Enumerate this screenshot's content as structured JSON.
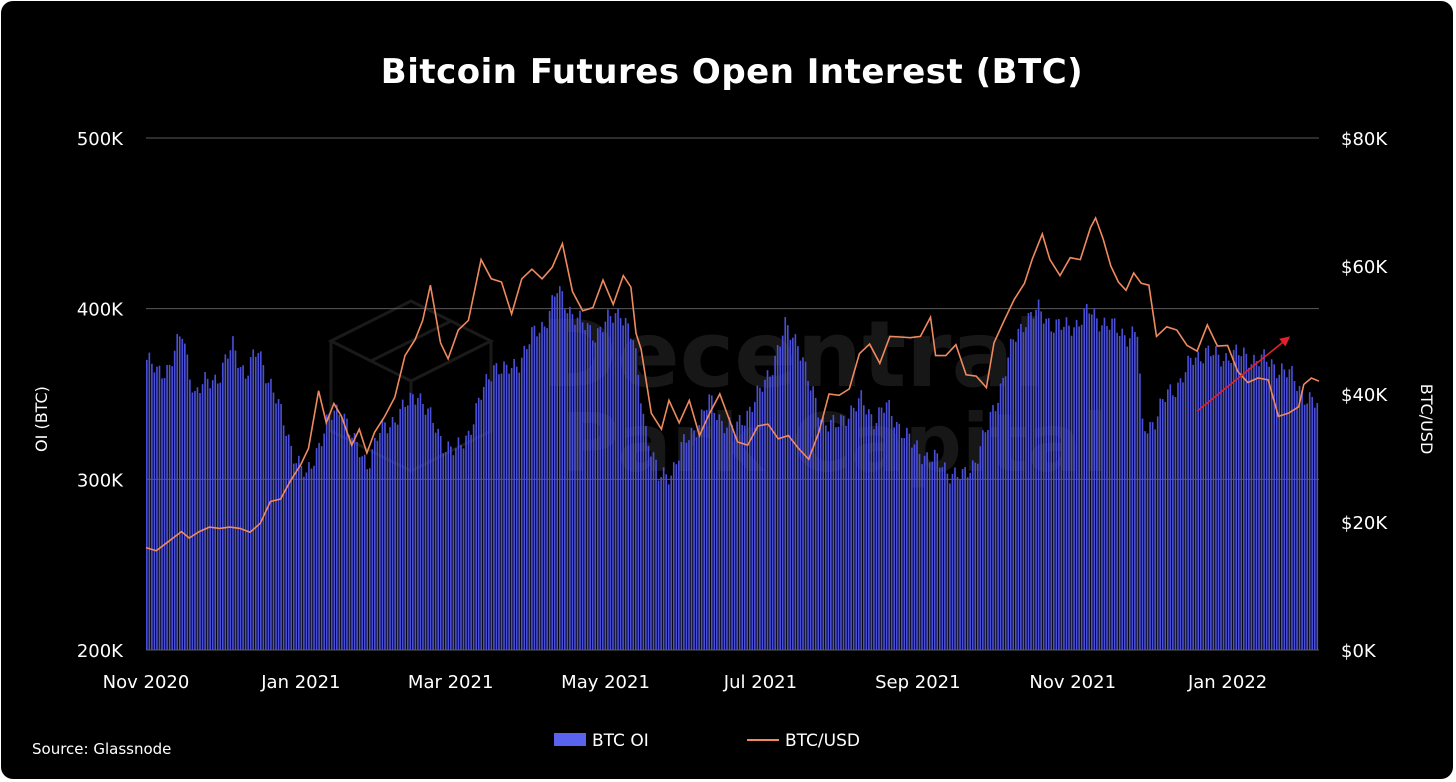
{
  "chart_data": {
    "type": "bar+line",
    "title": "Bitcoin Futures Open Interest (BTC)",
    "y_left_label": "OI (BTC)",
    "y_right_label": "BTC/USD",
    "y_left_ticks": [
      "200K",
      "300K",
      "400K",
      "500K"
    ],
    "y_right_ticks": [
      "$0K",
      "$20K",
      "$40K",
      "$60K",
      "$80K"
    ],
    "x_ticks": [
      "Nov 2020",
      "Jan 2021",
      "Mar 2021",
      "May 2021",
      "Jul 2021",
      "Sep 2021",
      "Nov 2021",
      "Jan 2022"
    ],
    "y_left_range": [
      200000,
      500000
    ],
    "y_right_range": [
      0,
      80000
    ],
    "grid": "horizontal",
    "legend_position": "bottom-center",
    "source": "Source: Glassnode",
    "watermark": [
      "Decentral",
      "Park Capital"
    ],
    "colors": {
      "bars": "#4a4fd8",
      "bars_legend": "#5a63f0",
      "line": "#f08a5e",
      "arrow": "#e0202a",
      "grid": "#5a5a5a",
      "background": "#000000"
    },
    "series": [
      {
        "name": "BTC OI",
        "kind": "bar",
        "x_start": "2020-11-01",
        "x_step_days": 1,
        "anchors": [
          [
            "2020-11-01",
            370000
          ],
          [
            "2020-11-05",
            362000
          ],
          [
            "2020-11-10",
            367000
          ],
          [
            "2020-11-15",
            385000
          ],
          [
            "2020-11-20",
            350000
          ],
          [
            "2020-11-25",
            357000
          ],
          [
            "2020-11-30",
            362000
          ],
          [
            "2020-12-05",
            378000
          ],
          [
            "2020-12-10",
            362000
          ],
          [
            "2020-12-15",
            375000
          ],
          [
            "2020-12-20",
            356000
          ],
          [
            "2020-12-25",
            333000
          ],
          [
            "2020-12-30",
            312000
          ],
          [
            "2021-01-03",
            300000
          ],
          [
            "2021-01-07",
            318000
          ],
          [
            "2021-01-12",
            335000
          ],
          [
            "2021-01-17",
            343000
          ],
          [
            "2021-01-22",
            320000
          ],
          [
            "2021-01-27",
            310000
          ],
          [
            "2021-02-01",
            327000
          ],
          [
            "2021-02-06",
            335000
          ],
          [
            "2021-02-11",
            342000
          ],
          [
            "2021-02-16",
            352000
          ],
          [
            "2021-02-21",
            335000
          ],
          [
            "2021-02-26",
            322000
          ],
          [
            "2021-03-03",
            315000
          ],
          [
            "2021-03-08",
            328000
          ],
          [
            "2021-03-13",
            348000
          ],
          [
            "2021-03-18",
            368000
          ],
          [
            "2021-03-23",
            362000
          ],
          [
            "2021-03-28",
            370000
          ],
          [
            "2021-04-02",
            383000
          ],
          [
            "2021-04-07",
            392000
          ],
          [
            "2021-04-12",
            410000
          ],
          [
            "2021-04-17",
            400000
          ],
          [
            "2021-04-22",
            390000
          ],
          [
            "2021-04-27",
            386000
          ],
          [
            "2021-05-02",
            392000
          ],
          [
            "2021-05-07",
            400000
          ],
          [
            "2021-05-12",
            380000
          ],
          [
            "2021-05-17",
            330000
          ],
          [
            "2021-05-22",
            300000
          ],
          [
            "2021-05-27",
            305000
          ],
          [
            "2021-06-01",
            320000
          ],
          [
            "2021-06-06",
            332000
          ],
          [
            "2021-06-11",
            345000
          ],
          [
            "2021-06-16",
            335000
          ],
          [
            "2021-06-21",
            328000
          ],
          [
            "2021-06-26",
            340000
          ],
          [
            "2021-07-01",
            350000
          ],
          [
            "2021-07-06",
            368000
          ],
          [
            "2021-07-11",
            388000
          ],
          [
            "2021-07-16",
            382000
          ],
          [
            "2021-07-21",
            352000
          ],
          [
            "2021-07-26",
            335000
          ],
          [
            "2021-07-31",
            330000
          ],
          [
            "2021-08-05",
            340000
          ],
          [
            "2021-08-10",
            345000
          ],
          [
            "2021-08-15",
            336000
          ],
          [
            "2021-08-20",
            342000
          ],
          [
            "2021-08-25",
            332000
          ],
          [
            "2021-08-30",
            320000
          ],
          [
            "2021-09-04",
            315000
          ],
          [
            "2021-09-09",
            310000
          ],
          [
            "2021-09-14",
            305000
          ],
          [
            "2021-09-19",
            300000
          ],
          [
            "2021-09-24",
            312000
          ],
          [
            "2021-09-29",
            330000
          ],
          [
            "2021-10-04",
            355000
          ],
          [
            "2021-10-09",
            380000
          ],
          [
            "2021-10-14",
            395000
          ],
          [
            "2021-10-19",
            398000
          ],
          [
            "2021-10-24",
            392000
          ],
          [
            "2021-10-29",
            388000
          ],
          [
            "2021-11-03",
            392000
          ],
          [
            "2021-11-08",
            398000
          ],
          [
            "2021-11-13",
            393000
          ],
          [
            "2021-11-18",
            388000
          ],
          [
            "2021-11-23",
            385000
          ],
          [
            "2021-11-27",
            385000
          ],
          [
            "2021-11-29",
            330000
          ],
          [
            "2021-12-04",
            335000
          ],
          [
            "2021-12-09",
            350000
          ],
          [
            "2021-12-14",
            358000
          ],
          [
            "2021-12-19",
            370000
          ],
          [
            "2021-12-24",
            376000
          ],
          [
            "2021-12-29",
            370000
          ],
          [
            "2022-01-03",
            374000
          ],
          [
            "2022-01-08",
            372000
          ],
          [
            "2022-01-13",
            371000
          ],
          [
            "2022-01-18",
            368000
          ],
          [
            "2022-01-23",
            365000
          ],
          [
            "2022-01-28",
            358000
          ],
          [
            "2022-02-02",
            348000
          ],
          [
            "2022-02-06",
            342000
          ]
        ]
      },
      {
        "name": "BTC/USD",
        "kind": "line",
        "axis": "right",
        "points": [
          [
            "2020-11-01",
            16000
          ],
          [
            "2020-11-05",
            15500
          ],
          [
            "2020-11-10",
            17000
          ],
          [
            "2020-11-15",
            18500
          ],
          [
            "2020-11-18",
            17500
          ],
          [
            "2020-11-22",
            18500
          ],
          [
            "2020-11-26",
            19200
          ],
          [
            "2020-11-30",
            19000
          ],
          [
            "2020-12-04",
            19200
          ],
          [
            "2020-12-08",
            19000
          ],
          [
            "2020-12-12",
            18400
          ],
          [
            "2020-12-16",
            19800
          ],
          [
            "2020-12-20",
            23200
          ],
          [
            "2020-12-24",
            23600
          ],
          [
            "2020-12-28",
            26500
          ],
          [
            "2021-01-01",
            29000
          ],
          [
            "2021-01-04",
            31500
          ],
          [
            "2021-01-08",
            40500
          ],
          [
            "2021-01-11",
            35500
          ],
          [
            "2021-01-14",
            38500
          ],
          [
            "2021-01-17",
            36500
          ],
          [
            "2021-01-21",
            32000
          ],
          [
            "2021-01-24",
            34500
          ],
          [
            "2021-01-27",
            30800
          ],
          [
            "2021-01-30",
            34000
          ],
          [
            "2021-02-03",
            36500
          ],
          [
            "2021-02-07",
            39500
          ],
          [
            "2021-02-11",
            46000
          ],
          [
            "2021-02-15",
            48500
          ],
          [
            "2021-02-18",
            51500
          ],
          [
            "2021-02-21",
            57000
          ],
          [
            "2021-02-25",
            48000
          ],
          [
            "2021-02-28",
            45500
          ],
          [
            "2021-03-04",
            50000
          ],
          [
            "2021-03-08",
            51500
          ],
          [
            "2021-03-13",
            61000
          ],
          [
            "2021-03-17",
            58000
          ],
          [
            "2021-03-21",
            57500
          ],
          [
            "2021-03-25",
            52500
          ],
          [
            "2021-03-29",
            58000
          ],
          [
            "2021-04-02",
            59500
          ],
          [
            "2021-04-06",
            58000
          ],
          [
            "2021-04-10",
            59800
          ],
          [
            "2021-04-14",
            63500
          ],
          [
            "2021-04-18",
            56000
          ],
          [
            "2021-04-22",
            53000
          ],
          [
            "2021-04-26",
            53500
          ],
          [
            "2021-04-30",
            57800
          ],
          [
            "2021-05-04",
            54000
          ],
          [
            "2021-05-08",
            58500
          ],
          [
            "2021-05-11",
            56700
          ],
          [
            "2021-05-13",
            49500
          ],
          [
            "2021-05-15",
            47000
          ],
          [
            "2021-05-19",
            37000
          ],
          [
            "2021-05-23",
            34500
          ],
          [
            "2021-05-26",
            39000
          ],
          [
            "2021-05-30",
            35500
          ],
          [
            "2021-06-03",
            39000
          ],
          [
            "2021-06-07",
            33500
          ],
          [
            "2021-06-11",
            37000
          ],
          [
            "2021-06-15",
            40000
          ],
          [
            "2021-06-19",
            35700
          ],
          [
            "2021-06-22",
            32500
          ],
          [
            "2021-06-26",
            32000
          ],
          [
            "2021-06-30",
            35000
          ],
          [
            "2021-07-04",
            35300
          ],
          [
            "2021-07-08",
            33000
          ],
          [
            "2021-07-12",
            33500
          ],
          [
            "2021-07-16",
            31500
          ],
          [
            "2021-07-20",
            29800
          ],
          [
            "2021-07-24",
            34000
          ],
          [
            "2021-07-28",
            40000
          ],
          [
            "2021-08-01",
            39800
          ],
          [
            "2021-08-05",
            40800
          ],
          [
            "2021-08-09",
            46300
          ],
          [
            "2021-08-13",
            47800
          ],
          [
            "2021-08-17",
            44800
          ],
          [
            "2021-08-21",
            49000
          ],
          [
            "2021-08-25",
            48900
          ],
          [
            "2021-08-29",
            48800
          ],
          [
            "2021-09-02",
            49000
          ],
          [
            "2021-09-06",
            52000
          ],
          [
            "2021-09-08",
            46000
          ],
          [
            "2021-09-12",
            46000
          ],
          [
            "2021-09-16",
            47700
          ],
          [
            "2021-09-20",
            43000
          ],
          [
            "2021-09-24",
            42800
          ],
          [
            "2021-09-28",
            41000
          ],
          [
            "2021-10-01",
            48000
          ],
          [
            "2021-10-05",
            51500
          ],
          [
            "2021-10-09",
            54800
          ],
          [
            "2021-10-13",
            57300
          ],
          [
            "2021-10-16",
            61000
          ],
          [
            "2021-10-20",
            65000
          ],
          [
            "2021-10-23",
            61000
          ],
          [
            "2021-10-27",
            58500
          ],
          [
            "2021-10-31",
            61300
          ],
          [
            "2021-11-04",
            61000
          ],
          [
            "2021-11-08",
            66000
          ],
          [
            "2021-11-10",
            67500
          ],
          [
            "2021-11-13",
            64200
          ],
          [
            "2021-11-16",
            60000
          ],
          [
            "2021-11-19",
            57500
          ],
          [
            "2021-11-22",
            56200
          ],
          [
            "2021-11-25",
            58900
          ],
          [
            "2021-11-28",
            57300
          ],
          [
            "2021-12-01",
            57000
          ],
          [
            "2021-12-04",
            49000
          ],
          [
            "2021-12-08",
            50500
          ],
          [
            "2021-12-12",
            50000
          ],
          [
            "2021-12-16",
            47600
          ],
          [
            "2021-12-20",
            46700
          ],
          [
            "2021-12-24",
            50800
          ],
          [
            "2021-12-28",
            47500
          ],
          [
            "2022-01-01",
            47600
          ],
          [
            "2022-01-05",
            43500
          ],
          [
            "2022-01-09",
            41800
          ],
          [
            "2022-01-13",
            42500
          ],
          [
            "2022-01-17",
            42200
          ],
          [
            "2022-01-21",
            36500
          ],
          [
            "2022-01-25",
            37000
          ],
          [
            "2022-01-29",
            38000
          ],
          [
            "2022-01-31",
            41500
          ],
          [
            "2022-02-03",
            42500
          ],
          [
            "2022-02-06",
            42000
          ]
        ]
      }
    ],
    "annotations": [
      {
        "type": "arrow",
        "from": [
          "2021-12-20",
          340000
        ],
        "to": [
          "2022-01-25",
          383000
        ],
        "axis": "left"
      }
    ]
  }
}
